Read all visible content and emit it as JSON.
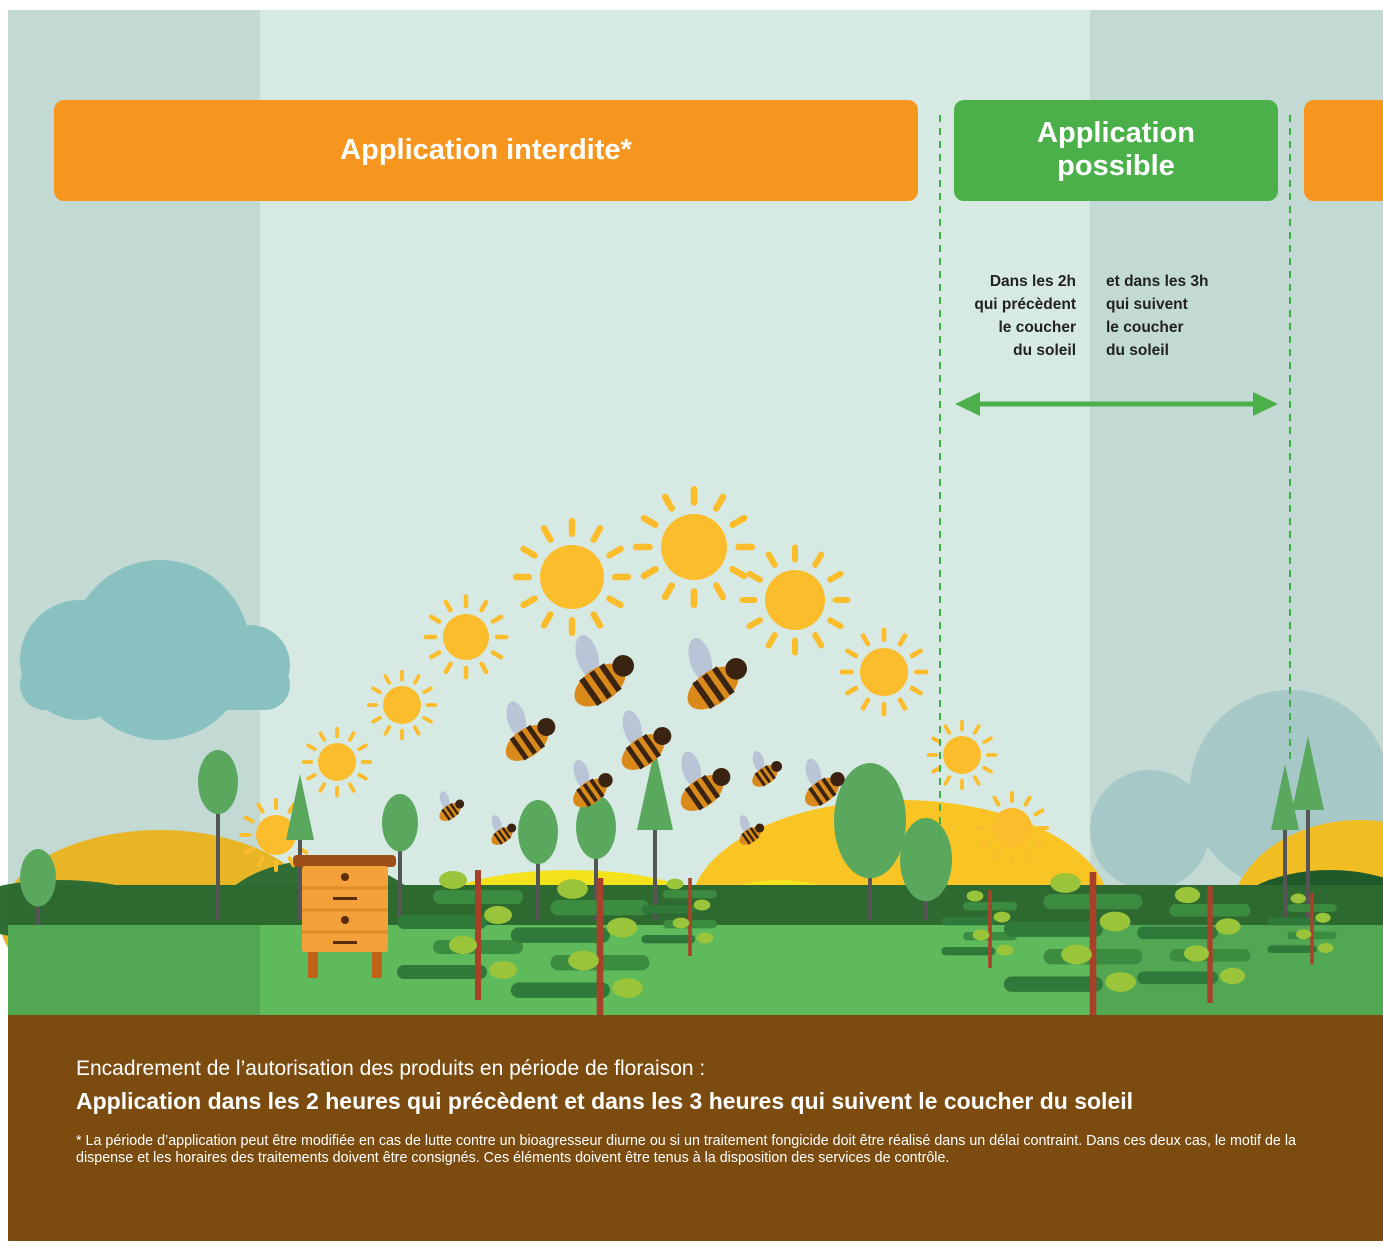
{
  "banners": {
    "forbidden": "Application interdite*",
    "allowed": "Application possible"
  },
  "timing": {
    "before": [
      "Dans les 2h",
      "qui précèdent",
      "le coucher",
      "du soleil"
    ],
    "after": [
      "et dans les 3h",
      "qui suivent",
      "le coucher",
      "du soleil"
    ]
  },
  "footer": {
    "intro": "Encadrement de l’autorisation des produits en période de floraison :",
    "rule": "Application dans les 2 heures qui précèdent et dans les 3 heures qui suivent le coucher du soleil",
    "note": "* La période d’application peut être modifiée en cas de lutte contre un bioagresseur diurne ou si un traitement fongicide doit être réalisé dans un délai contraint. Dans ces deux cas, le motif de la dispense et les horaires des traitements doivent être consignés. Ces éléments doivent être tenus à la disposition des services de contrôle."
  }
}
